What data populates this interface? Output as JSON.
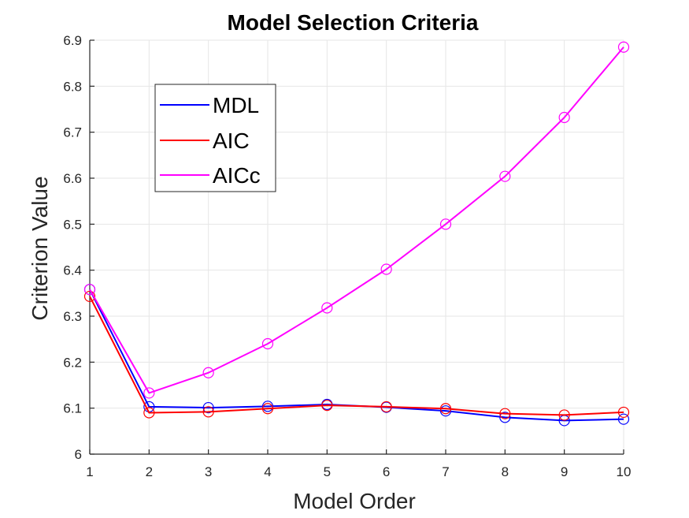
{
  "chart_data": {
    "type": "line",
    "title": "Model Selection Criteria",
    "xlabel": "Model Order",
    "ylabel": "Criterion Value",
    "x": [
      1,
      2,
      3,
      4,
      5,
      6,
      7,
      8,
      9,
      10
    ],
    "xticks": [
      1,
      2,
      3,
      4,
      5,
      6,
      7,
      8,
      9,
      10
    ],
    "xtick_labels": [
      "1",
      "2",
      "3",
      "4",
      "5",
      "6",
      "7",
      "8",
      "9",
      "10"
    ],
    "yticks": [
      6,
      6.1,
      6.2,
      6.3,
      6.4,
      6.5,
      6.6,
      6.7,
      6.8,
      6.9
    ],
    "ytick_labels": [
      "6",
      "6.1",
      "6.2",
      "6.3",
      "6.4",
      "6.5",
      "6.6",
      "6.7",
      "6.8",
      "6.9"
    ],
    "xlim": [
      1,
      10
    ],
    "ylim": [
      6,
      6.9
    ],
    "grid": true,
    "legend_position": "upper-left",
    "marker": "circle",
    "series": [
      {
        "name": "MDL",
        "color": "#0000ff",
        "values": [
          6.358,
          6.103,
          6.101,
          6.104,
          6.108,
          6.102,
          6.094,
          6.08,
          6.073,
          6.076
        ]
      },
      {
        "name": "AIC",
        "color": "#ff0000",
        "values": [
          6.343,
          6.09,
          6.092,
          6.099,
          6.106,
          6.103,
          6.099,
          6.088,
          6.085,
          6.091
        ]
      },
      {
        "name": "AICc",
        "color": "#ff00ff",
        "values": [
          6.358,
          6.133,
          6.177,
          6.24,
          6.318,
          6.402,
          6.5,
          6.604,
          6.732,
          6.885
        ]
      }
    ]
  }
}
